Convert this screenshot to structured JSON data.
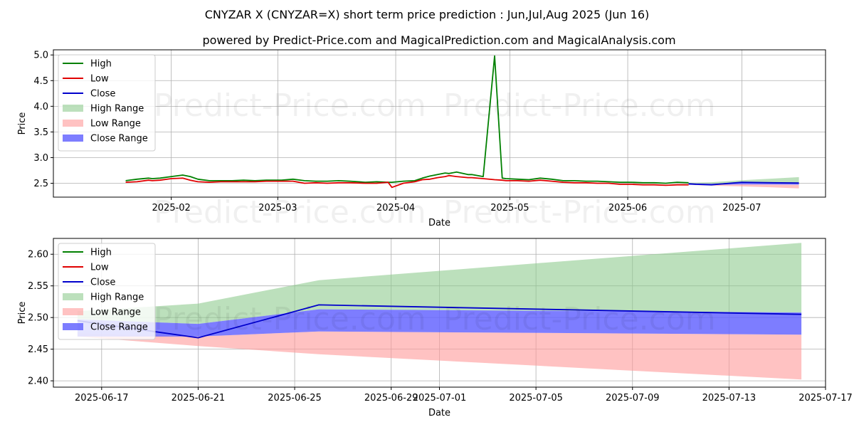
{
  "title": "CNYZAR X (CNYZAR=X) short term price prediction : Jun,Jul,Aug 2025 (Jun 16)",
  "subtitle": "powered by Predict-Price.com and MagicalPrediction.com and MagicalAnalysis.com",
  "watermark": "Predict-Price.com",
  "colors": {
    "high": "#008000",
    "low": "#e00000",
    "close": "#0000cc",
    "high_range": "#8fcc8f",
    "low_range": "#ff9999",
    "close_range": "#6666ff",
    "grid": "#b0b0b0"
  },
  "chart_data": [
    {
      "type": "line",
      "xlabel": "Date",
      "ylabel": "Price",
      "ylim": [
        2.23,
        5.1
      ],
      "yticks": [
        2.5,
        3.0,
        3.5,
        4.0,
        4.5,
        5.0
      ],
      "ytick_labels": [
        "2.5",
        "3.0",
        "3.5",
        "4.0",
        "4.5",
        "5.0"
      ],
      "xlim_days": [
        -13,
        190
      ],
      "xticks": [
        {
          "day": 18,
          "label": "2025-02"
        },
        {
          "day": 46,
          "label": "2025-03"
        },
        {
          "day": 77,
          "label": "2025-04"
        },
        {
          "day": 107,
          "label": "2025-05"
        },
        {
          "day": 138,
          "label": "2025-06"
        },
        {
          "day": 168,
          "label": "2025-07"
        }
      ],
      "x_reference": "2025-01-15 = day 0",
      "legend": [
        "High",
        "Low",
        "Close",
        "High Range",
        "Low Range",
        "Close Range"
      ],
      "legend_position": "top-left",
      "series": [
        {
          "name": "High",
          "x": [
            6,
            9,
            12,
            13,
            15,
            18,
            21,
            23,
            25,
            28,
            31,
            34,
            37,
            40,
            43,
            47,
            50,
            53,
            56,
            59,
            62,
            65,
            69,
            72,
            75,
            76,
            79,
            82,
            84,
            86,
            88,
            90,
            91,
            93,
            96,
            97,
            100,
            103,
            105,
            106,
            109,
            112,
            115,
            118,
            121,
            124,
            127,
            130,
            133,
            136,
            139,
            142,
            145,
            148,
            151,
            154
          ],
          "values": [
            2.55,
            2.58,
            2.6,
            2.59,
            2.6,
            2.63,
            2.66,
            2.63,
            2.58,
            2.55,
            2.55,
            2.55,
            2.56,
            2.55,
            2.56,
            2.56,
            2.58,
            2.55,
            2.54,
            2.54,
            2.55,
            2.54,
            2.52,
            2.53,
            2.52,
            2.52,
            2.54,
            2.55,
            2.6,
            2.64,
            2.67,
            2.7,
            2.69,
            2.72,
            2.67,
            2.67,
            2.63,
            4.98,
            2.6,
            2.59,
            2.58,
            2.57,
            2.6,
            2.58,
            2.55,
            2.55,
            2.54,
            2.54,
            2.53,
            2.52,
            2.52,
            2.51,
            2.51,
            2.5,
            2.52,
            2.51
          ]
        },
        {
          "name": "Low",
          "x": [
            6,
            9,
            12,
            13,
            15,
            18,
            21,
            23,
            25,
            28,
            31,
            34,
            37,
            40,
            43,
            47,
            50,
            53,
            56,
            59,
            62,
            65,
            69,
            72,
            75,
            76,
            79,
            82,
            84,
            86,
            88,
            90,
            91,
            93,
            96,
            97,
            100,
            103,
            105,
            106,
            109,
            112,
            115,
            118,
            121,
            124,
            127,
            130,
            133,
            136,
            139,
            142,
            145,
            148,
            151,
            154
          ],
          "values": [
            2.52,
            2.53,
            2.56,
            2.55,
            2.56,
            2.59,
            2.6,
            2.56,
            2.53,
            2.52,
            2.53,
            2.53,
            2.53,
            2.53,
            2.54,
            2.54,
            2.54,
            2.5,
            2.51,
            2.5,
            2.51,
            2.51,
            2.5,
            2.5,
            2.52,
            2.42,
            2.5,
            2.53,
            2.57,
            2.58,
            2.61,
            2.63,
            2.65,
            2.63,
            2.61,
            2.61,
            2.59,
            2.57,
            2.56,
            2.55,
            2.55,
            2.54,
            2.56,
            2.54,
            2.52,
            2.51,
            2.51,
            2.5,
            2.5,
            2.48,
            2.48,
            2.47,
            2.47,
            2.46,
            2.47,
            2.47
          ]
        },
        {
          "name": "Close",
          "x": [
            154,
            156,
            160,
            168,
            176,
            183
          ],
          "values": [
            2.49,
            2.48,
            2.47,
            2.52,
            2.51,
            2.505
          ]
        },
        {
          "name": "High Range",
          "x": [
            154,
            160,
            168,
            176,
            183
          ],
          "lower": [
            2.5,
            2.49,
            2.51,
            2.51,
            2.505
          ],
          "upper": [
            2.51,
            2.52,
            2.56,
            2.59,
            2.62
          ]
        },
        {
          "name": "Low Range",
          "x": [
            154,
            160,
            168,
            176,
            183
          ],
          "lower": [
            2.47,
            2.455,
            2.44,
            2.42,
            2.4
          ],
          "upper": [
            2.47,
            2.47,
            2.48,
            2.475,
            2.47
          ]
        },
        {
          "name": "Close Range",
          "x": [
            154,
            160,
            168,
            176,
            183
          ],
          "lower": [
            2.47,
            2.47,
            2.478,
            2.475,
            2.472
          ],
          "upper": [
            2.5,
            2.49,
            2.515,
            2.512,
            2.507
          ]
        }
      ]
    },
    {
      "type": "area",
      "xlabel": "Date",
      "ylabel": "Price",
      "ylim": [
        2.39,
        2.625
      ],
      "yticks": [
        2.4,
        2.45,
        2.5,
        2.55,
        2.6
      ],
      "ytick_labels": [
        "2.40",
        "2.45",
        "2.50",
        "2.55",
        "2.60"
      ],
      "xlim_days": [
        -1.0,
        31.0
      ],
      "xticks": [
        {
          "day": 1,
          "label": "2025-06-17"
        },
        {
          "day": 5,
          "label": "2025-06-21"
        },
        {
          "day": 9,
          "label": "2025-06-25"
        },
        {
          "day": 13,
          "label": "2025-06-29"
        },
        {
          "day": 15,
          "label": "2025-07-01"
        },
        {
          "day": 19,
          "label": "2025-07-05"
        },
        {
          "day": 23,
          "label": "2025-07-09"
        },
        {
          "day": 27,
          "label": "2025-07-13"
        },
        {
          "day": 31,
          "label": "2025-07-17"
        }
      ],
      "x_reference": "2025-06-16 = day 0",
      "legend": [
        "High",
        "Low",
        "Close",
        "High Range",
        "Low Range",
        "Close Range"
      ],
      "legend_position": "top-left",
      "series": [
        {
          "name": "Close",
          "x": [
            0,
            5,
            10,
            30
          ],
          "values": [
            2.495,
            2.468,
            2.52,
            2.505
          ]
        },
        {
          "name": "High Range",
          "x": [
            0,
            5,
            10,
            30
          ],
          "lower": [
            2.497,
            2.49,
            2.513,
            2.508
          ],
          "upper": [
            2.51,
            2.522,
            2.559,
            2.618
          ]
        },
        {
          "name": "Low Range",
          "x": [
            0,
            5,
            10,
            30
          ],
          "lower": [
            2.47,
            2.455,
            2.442,
            2.402
          ],
          "upper": [
            2.475,
            2.47,
            2.478,
            2.473
          ]
        },
        {
          "name": "Close Range",
          "x": [
            0,
            5,
            10,
            30
          ],
          "lower": [
            2.47,
            2.47,
            2.478,
            2.473
          ],
          "upper": [
            2.497,
            2.49,
            2.513,
            2.508
          ]
        }
      ]
    }
  ]
}
